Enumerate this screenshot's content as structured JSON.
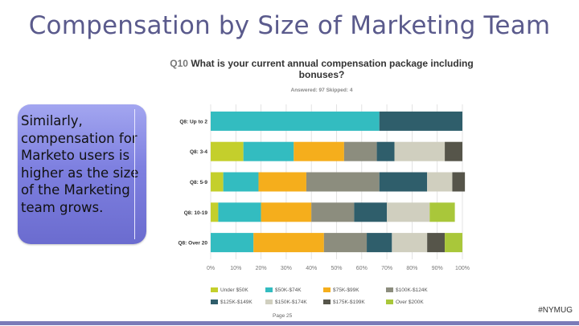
{
  "slide": {
    "title": "Compensation by Size of Marketing Team",
    "callout": "Similarly, compensation for Marketo users is higher as the size of the Marketing team grows.",
    "page_label": "Page 25",
    "hashtag": "#NYMUG"
  },
  "chart_data": {
    "type": "bar",
    "orientation": "horizontal",
    "stacked": true,
    "title_prefix": "Q10",
    "title": "What is your current annual compensation package including bonuses?",
    "subtitle": "Answered: 97    Skipped: 4",
    "categories": [
      "Q8: Up to 2",
      "Q8: 3-4",
      "Q8: 5-9",
      "Q8: 10-19",
      "Q8: Over 20"
    ],
    "xlim": [
      0,
      100
    ],
    "xticks": [
      "0%",
      "10%",
      "20%",
      "30%",
      "40%",
      "50%",
      "60%",
      "70%",
      "80%",
      "90%",
      "100%"
    ],
    "grid": true,
    "legend_position": "bottom",
    "series": [
      {
        "name": "Under $50K",
        "color": "#c4cf2c",
        "values": [
          0,
          13,
          5,
          3,
          0
        ]
      },
      {
        "name": "$50K-$74K",
        "color": "#33bcc0",
        "values": [
          67,
          20,
          14,
          17,
          17
        ]
      },
      {
        "name": "$75K-$99K",
        "color": "#f5ae1c",
        "values": [
          0,
          20,
          19,
          20,
          28
        ]
      },
      {
        "name": "$100K-$124K",
        "color": "#8c8d7e",
        "values": [
          0,
          13,
          29,
          17,
          17
        ]
      },
      {
        "name": "$125K-$149K",
        "color": "#2f5e6b",
        "values": [
          33,
          7,
          19,
          13,
          10
        ]
      },
      {
        "name": "$150K-$174K",
        "color": "#d0cfbf",
        "values": [
          0,
          20,
          10,
          17,
          14
        ]
      },
      {
        "name": "$175K-$199K",
        "color": "#56554a",
        "values": [
          0,
          7,
          5,
          0,
          7
        ]
      },
      {
        "name": "Over $200K",
        "color": "#a9c73a",
        "values": [
          0,
          0,
          0,
          10,
          7
        ]
      }
    ]
  }
}
